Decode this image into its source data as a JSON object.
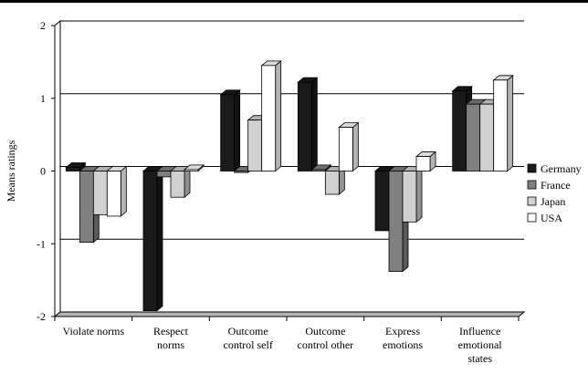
{
  "chart_data": {
    "type": "bar",
    "title": "",
    "xlabel": "",
    "ylabel": "Means ratings",
    "ylim": [
      -2,
      2
    ],
    "yticks": [
      "-2",
      "-1",
      "0",
      "1",
      "2"
    ],
    "grid": true,
    "legend_position": "right",
    "categories": [
      [
        "Violate norms"
      ],
      [
        "Respect",
        "norms"
      ],
      [
        "Outcome",
        "control self"
      ],
      [
        "Outcome",
        "control other"
      ],
      [
        "Express",
        "emotions"
      ],
      [
        "Influence",
        "emotional",
        "states"
      ]
    ],
    "series": [
      {
        "name": "Germany",
        "color": "#1a1a1a",
        "values": [
          0.05,
          -1.92,
          1.05,
          1.22,
          -0.82,
          1.1
        ]
      },
      {
        "name": "France",
        "color": "#808080",
        "values": [
          -0.98,
          -0.08,
          -0.02,
          0.02,
          -1.38,
          0.92
        ]
      },
      {
        "name": "Japan",
        "color": "#d0d0d0",
        "values": [
          -0.6,
          -0.36,
          0.7,
          -0.32,
          -0.7,
          0.92
        ]
      },
      {
        "name": "USA",
        "color": "#ffffff",
        "values": [
          -0.62,
          0.02,
          1.45,
          0.6,
          0.2,
          1.25
        ]
      }
    ]
  }
}
